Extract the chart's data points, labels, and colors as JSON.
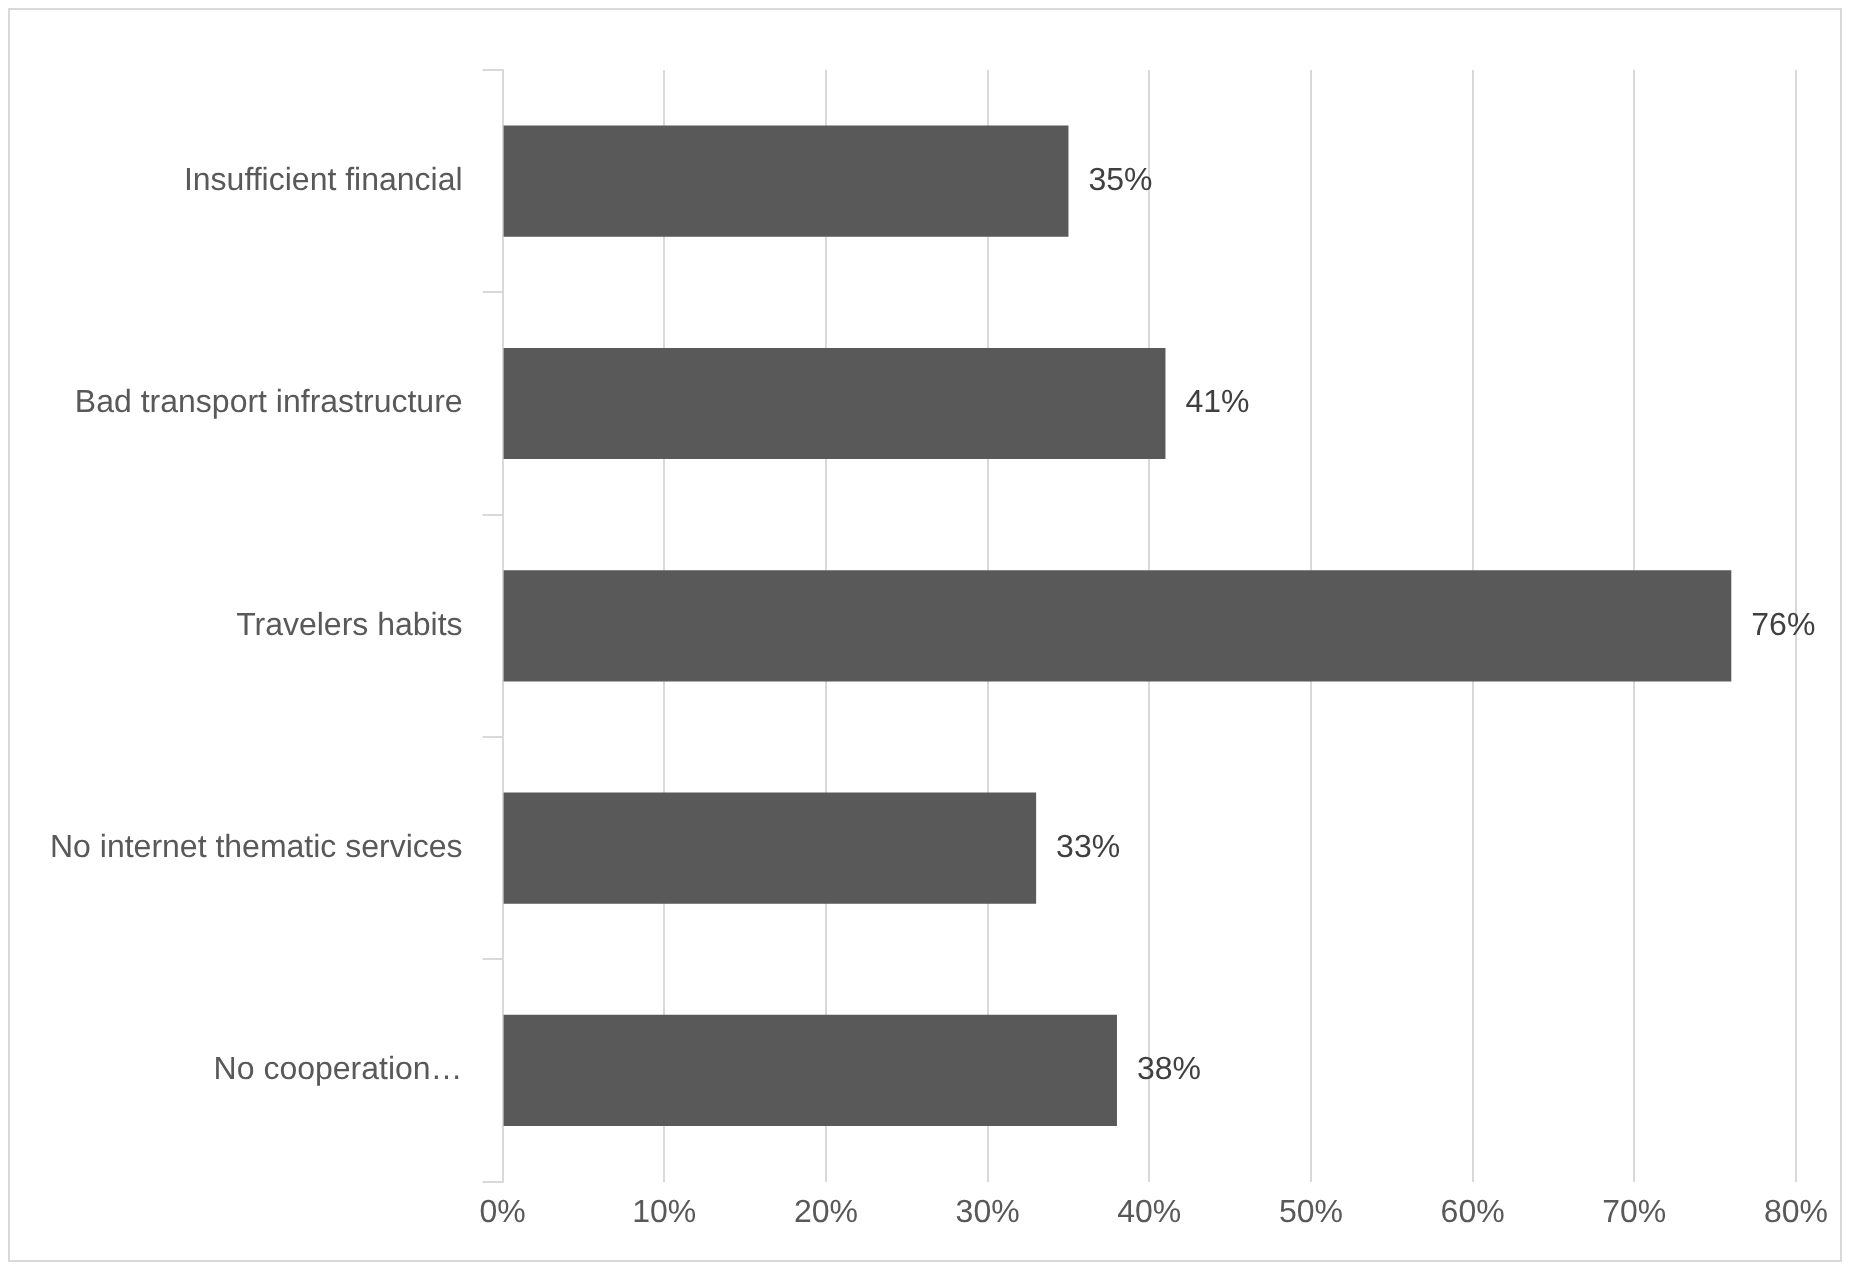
{
  "chart_data": {
    "type": "bar",
    "orientation": "horizontal",
    "categories": [
      "Insufficient financial",
      "Bad transport infrastructure",
      "Travelers habits",
      "No internet thematic services",
      "No cooperation…"
    ],
    "values": [
      35,
      41,
      76,
      33,
      38
    ],
    "value_labels": [
      "35%",
      "41%",
      "76%",
      "33%",
      "38%"
    ],
    "color": "#595959",
    "xlim": [
      0,
      80
    ],
    "xticks": [
      {
        "value": 0,
        "label": "0%"
      },
      {
        "value": 10,
        "label": "10%"
      },
      {
        "value": 20,
        "label": "20%"
      },
      {
        "value": 30,
        "label": "30%"
      },
      {
        "value": 40,
        "label": "40%"
      },
      {
        "value": 50,
        "label": "50%"
      },
      {
        "value": 60,
        "label": "60%"
      },
      {
        "value": 70,
        "label": "70%"
      },
      {
        "value": 80,
        "label": "80%"
      }
    ],
    "grid": "x",
    "legend": false
  }
}
